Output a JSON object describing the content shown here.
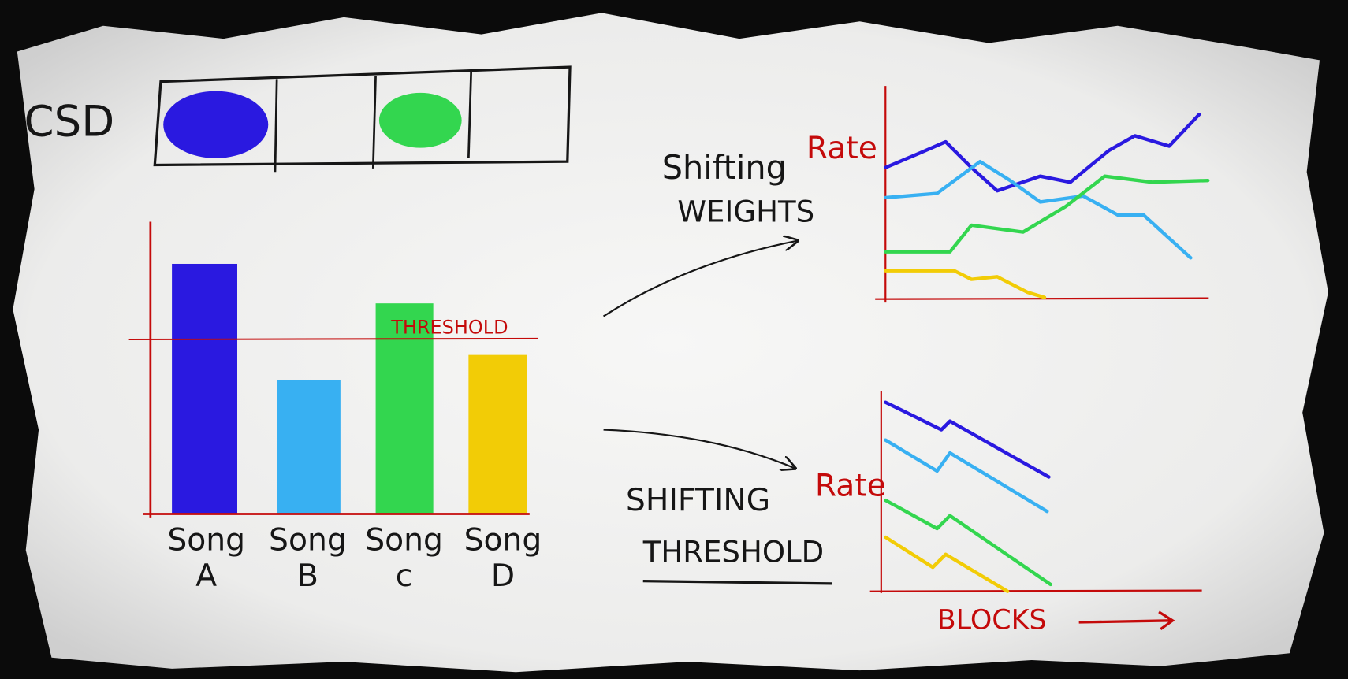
{
  "csd": {
    "label": "CSD"
  },
  "bar_chart": {
    "threshold_label": "THRESHOLD",
    "songs": [
      {
        "word": "Song",
        "letter": "A"
      },
      {
        "word": "Song",
        "letter": "B"
      },
      {
        "word": "Song",
        "letter": "c"
      },
      {
        "word": "Song",
        "letter": "D"
      }
    ]
  },
  "shifting_weights": {
    "title_lines": [
      "Shifting",
      "WEIGHTS"
    ],
    "y_label": "Rate"
  },
  "shifting_threshold": {
    "title_lines": [
      "SHIFTING",
      "THRESHOLD"
    ],
    "y_label": "Rate",
    "x_label": "BLOCKS"
  }
}
